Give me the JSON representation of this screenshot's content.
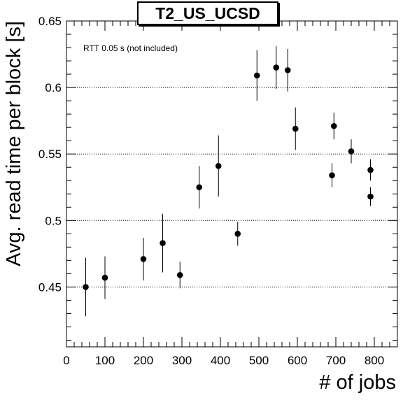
{
  "chart_data": {
    "type": "scatter",
    "title": "T2_US_UCSD",
    "xlabel": "# of jobs",
    "ylabel": "Avg. read time per block [s]",
    "annotation": "RTT 0.05 s (not included)",
    "xlim": [
      0,
      860
    ],
    "ylim": [
      0.405,
      0.65
    ],
    "x_ticks": [
      0,
      100,
      200,
      300,
      400,
      500,
      600,
      700,
      800
    ],
    "x_tick_labels": [
      "0",
      "100",
      "200",
      "300",
      "400",
      "500",
      "600",
      "700",
      "800"
    ],
    "y_ticks": [
      0.45,
      0.5,
      0.55,
      0.6,
      0.65
    ],
    "y_tick_labels": [
      "0.45",
      "0.5",
      "0.55",
      "0.6",
      "0.65"
    ],
    "grid": "horizontal dotted at major y ticks",
    "marker_color": "#000000",
    "points": [
      {
        "x": 50,
        "y": 0.45,
        "yerr": 0.022
      },
      {
        "x": 100,
        "y": 0.457,
        "yerr": 0.016
      },
      {
        "x": 200,
        "y": 0.471,
        "yerr": 0.016
      },
      {
        "x": 250,
        "y": 0.483,
        "yerr": 0.022
      },
      {
        "x": 295,
        "y": 0.459,
        "yerr": 0.01
      },
      {
        "x": 345,
        "y": 0.525,
        "yerr": 0.016
      },
      {
        "x": 395,
        "y": 0.541,
        "yerr": 0.023
      },
      {
        "x": 445,
        "y": 0.49,
        "yerr": 0.009
      },
      {
        "x": 495,
        "y": 0.609,
        "yerr": 0.019
      },
      {
        "x": 545,
        "y": 0.615,
        "yerr": 0.016
      },
      {
        "x": 575,
        "y": 0.613,
        "yerr": 0.016
      },
      {
        "x": 595,
        "y": 0.569,
        "yerr": 0.016
      },
      {
        "x": 690,
        "y": 0.534,
        "yerr": 0.009
      },
      {
        "x": 695,
        "y": 0.571,
        "yerr": 0.01
      },
      {
        "x": 740,
        "y": 0.552,
        "yerr": 0.009
      },
      {
        "x": 790,
        "y": 0.538,
        "yerr": 0.008
      },
      {
        "x": 790,
        "y": 0.518,
        "yerr": 0.007
      }
    ]
  }
}
